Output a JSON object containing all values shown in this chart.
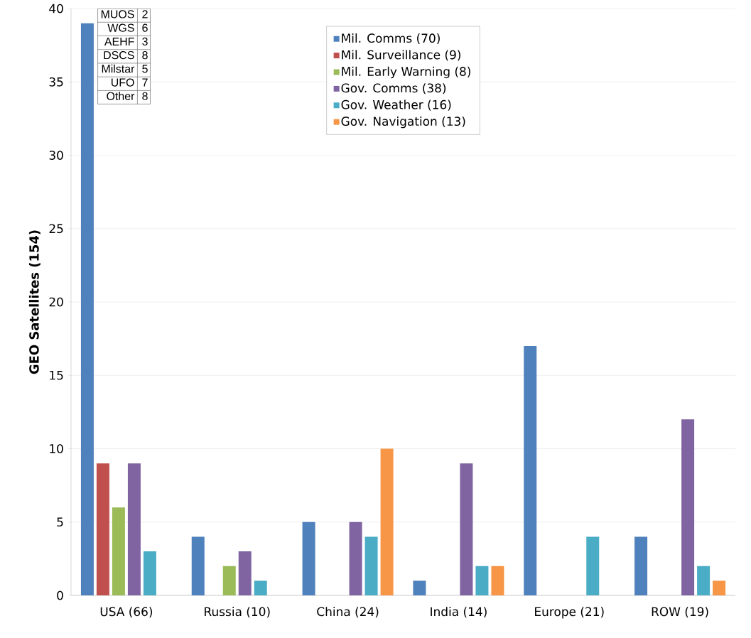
{
  "chart_data": {
    "type": "bar",
    "ylabel": "GEO Satellites (154)",
    "categories": [
      "USA (66)",
      "Russia (10)",
      "China (24)",
      "India (14)",
      "Europe (21)",
      "ROW (19)"
    ],
    "series": [
      {
        "name": "Mil. Comms (70)",
        "color": "#4f81bd",
        "values": [
          39,
          4,
          5,
          1,
          17,
          4
        ]
      },
      {
        "name": "Mil. Surveillance (9)",
        "color": "#c0504d",
        "values": [
          9,
          0,
          0,
          0,
          0,
          0
        ]
      },
      {
        "name": "Mil. Early Warning (8)",
        "color": "#9bbb59",
        "values": [
          6,
          2,
          0,
          0,
          0,
          0
        ]
      },
      {
        "name": "Gov. Comms (38)",
        "color": "#8064a2",
        "values": [
          9,
          3,
          5,
          9,
          0,
          12
        ]
      },
      {
        "name": "Gov. Weather (16)",
        "color": "#4bacc6",
        "values": [
          3,
          1,
          4,
          2,
          4,
          2
        ]
      },
      {
        "name": "Gov. Navigation (13)",
        "color": "#f79646",
        "values": [
          0,
          0,
          10,
          2,
          0,
          1
        ]
      }
    ],
    "ylim": [
      0,
      40
    ],
    "yticks": [
      0,
      5,
      10,
      15,
      20,
      25,
      30,
      35,
      40
    ],
    "grid": "y",
    "legend": "top",
    "annotations": [
      "MUOS",
      "2",
      "WGS",
      "6",
      "AEHF",
      "3",
      "DSCS",
      "8",
      "Milstar",
      "5",
      "UFO",
      "7",
      "Other",
      "8"
    ]
  }
}
